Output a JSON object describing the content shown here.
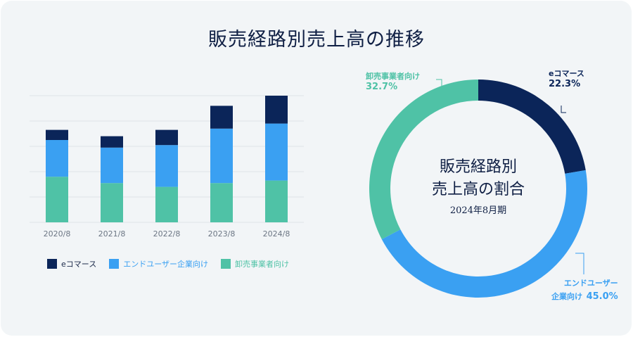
{
  "title": "販売経路別売上高の推移",
  "colors": {
    "ecommerce": "#0b2559",
    "end_user": "#3aa0f2",
    "wholesale": "#4fc2a6",
    "grid": "#dde2e7",
    "axis_text": "#6c7684"
  },
  "chart_data": [
    {
      "type": "bar",
      "stacked": true,
      "categories": [
        "2020/8",
        "2021/8",
        "2022/8",
        "2023/8",
        "2024/8"
      ],
      "series": [
        {
          "name": "卸売事業者向け",
          "values": [
            36,
            31,
            28,
            31,
            33
          ]
        },
        {
          "name": "エンドユーザー企業向け",
          "values": [
            29,
            28,
            33,
            43,
            45
          ]
        },
        {
          "name": "eコマース",
          "values": [
            8,
            9,
            12,
            18,
            22
          ]
        }
      ],
      "ylim": [
        0,
        100
      ],
      "grid": true,
      "legend_position": "bottom"
    },
    {
      "type": "pie",
      "donut": true,
      "title": "販売経路別売上高の割合",
      "subtitle": "2024年8月期",
      "slices": [
        {
          "label": "eコマース",
          "value": 22.3
        },
        {
          "label": "エンドユーザー企業向け",
          "value": 45.0
        },
        {
          "label": "卸売事業者向け",
          "value": 32.7
        }
      ]
    }
  ],
  "legend": [
    "eコマース",
    "エンドユーザー企業向け",
    "卸売事業者向け"
  ],
  "donut_center": {
    "line1": "販売経路別",
    "line2": "売上高の割合",
    "period": "2024年8月期"
  },
  "donut_labels": {
    "ecommerce": {
      "name": "eコマース",
      "value": "22.3%"
    },
    "end_user": {
      "name_line1": "エンドユーザー",
      "name_line2": "企業向け",
      "value": "45.0%"
    },
    "wholesale": {
      "name": "卸売事業者向け",
      "value": "32.7%"
    }
  }
}
